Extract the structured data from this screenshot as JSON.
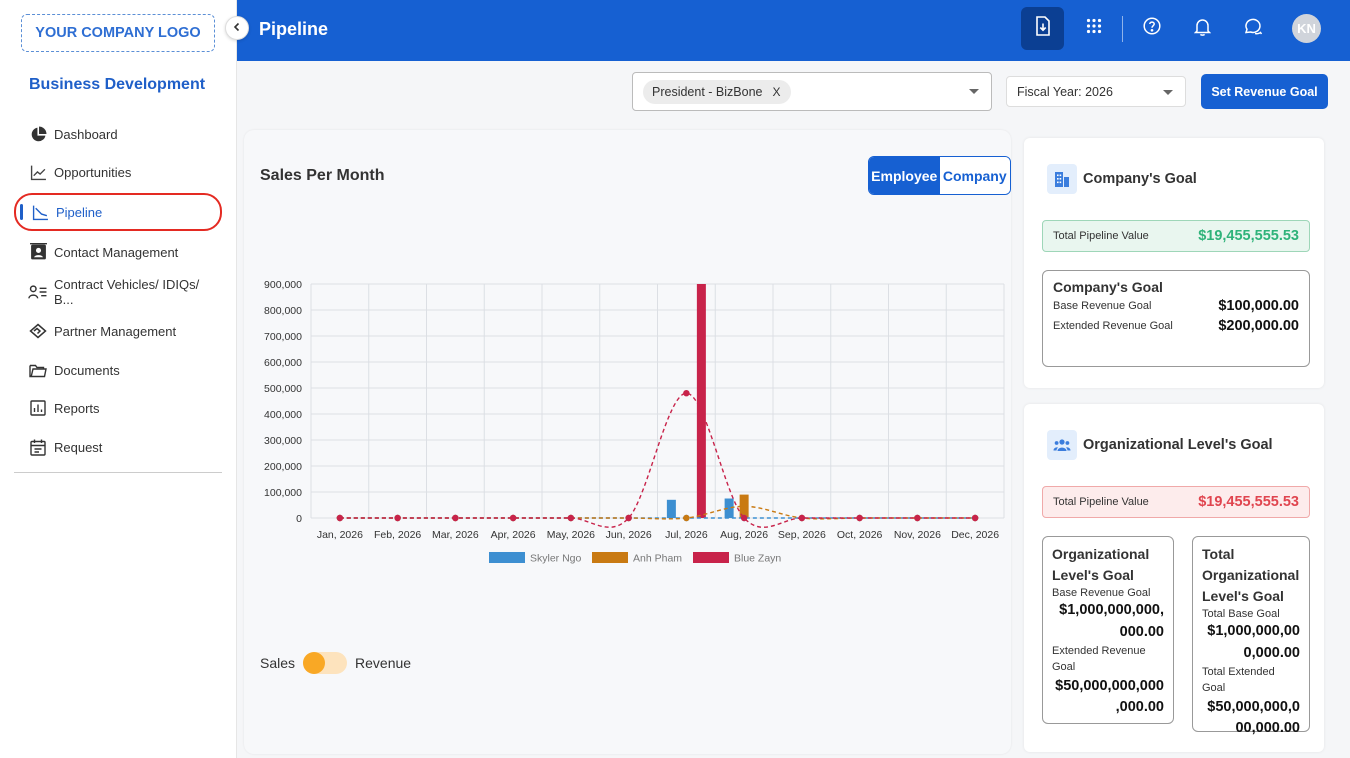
{
  "sidebar": {
    "logo": "YOUR COMPANY LOGO",
    "title": "Business Development",
    "items": [
      {
        "label": "Dashboard",
        "icon": "pie-chart-icon"
      },
      {
        "label": "Opportunities",
        "icon": "trend-line-icon"
      },
      {
        "label": "Pipeline",
        "icon": "pipeline-icon",
        "active": true
      },
      {
        "label": "Contact Management",
        "icon": "contact-card-icon"
      },
      {
        "label": "Contract Vehicles/ IDIQs/ B...",
        "icon": "user-list-icon"
      },
      {
        "label": "Partner Management",
        "icon": "handshake-icon"
      },
      {
        "label": "Documents",
        "icon": "folder-icon"
      },
      {
        "label": "Reports",
        "icon": "report-icon"
      },
      {
        "label": "Request",
        "icon": "calendar-icon"
      }
    ]
  },
  "header": {
    "title": "Pipeline",
    "avatar_initials": "KN"
  },
  "filters": {
    "role_chip": "President - BizBone",
    "chip_remove": "X",
    "fiscal_year": "Fiscal Year: 2026",
    "set_goal_button": "Set Revenue Goal"
  },
  "chart_panel": {
    "title": "Sales Per Month",
    "toggle_employee": "Employee",
    "toggle_company": "Company",
    "switch_left": "Sales",
    "switch_right": "Revenue"
  },
  "chart_data": {
    "type": "bar",
    "categories": [
      "Jan, 2026",
      "Feb, 2026",
      "Mar, 2026",
      "Apr, 2026",
      "May, 2026",
      "Jun, 2026",
      "Jul, 2026",
      "Aug, 2026",
      "Sep, 2026",
      "Oct, 2026",
      "Nov, 2026",
      "Dec, 2026"
    ],
    "y_ticks": [
      "0",
      "100,000",
      "200,000",
      "300,000",
      "400,000",
      "500,000",
      "600,000",
      "700,000",
      "800,000",
      "900,000"
    ],
    "ylim": [
      0,
      900000
    ],
    "grid": true,
    "legend_position": "bottom",
    "series": [
      {
        "name": "Skyler Ngo",
        "color": "#3d8fd1",
        "values": [
          0,
          0,
          0,
          0,
          0,
          0,
          70000,
          75000,
          0,
          0,
          0,
          0
        ],
        "line_values": [
          0,
          0,
          0,
          0,
          0,
          0,
          0,
          0,
          0,
          0,
          0,
          0
        ]
      },
      {
        "name": "Anh Pham",
        "color": "#c97a12",
        "values": [
          0,
          0,
          0,
          0,
          0,
          0,
          0,
          90000,
          0,
          0,
          0,
          0
        ],
        "line_values": [
          0,
          0,
          0,
          0,
          0,
          0,
          0,
          45000,
          0,
          0,
          0,
          0
        ]
      },
      {
        "name": "Blue Zayn",
        "color": "#c8234a",
        "values": [
          0,
          0,
          0,
          0,
          0,
          0,
          900000,
          0,
          0,
          0,
          0,
          0
        ],
        "line_values": [
          0,
          0,
          0,
          0,
          0,
          0,
          480000,
          0,
          0,
          0,
          0,
          0
        ]
      }
    ]
  },
  "company_goal": {
    "title": "Company's Goal",
    "pipeline_label": "Total Pipeline Value",
    "pipeline_value": "$19,455,555.53",
    "box_title": "Company's Goal",
    "base_label": "Base Revenue Goal",
    "base_value": "$100,000.00",
    "extended_label": "Extended Revenue Goal",
    "extended_value": "$200,000.00"
  },
  "org_goal": {
    "title": "Organizational Level's Goal",
    "pipeline_label": "Total Pipeline Value",
    "pipeline_value": "$19,455,555.53",
    "left_title_1": "Organizational",
    "left_title_2": "Level's Goal",
    "left_base_label": "Base Revenue Goal",
    "left_base_value_1": "$1,000,000,000,",
    "left_base_value_2": "000.00",
    "left_ext_label_1": "Extended Revenue",
    "left_ext_label_2": "Goal",
    "left_ext_value_1": "$50,000,000,000",
    "left_ext_value_2": ",000.00",
    "right_title_1": "Total",
    "right_title_2": "Organizational",
    "right_title_3": "Level's Goal",
    "right_base_label": "Total Base Goal",
    "right_base_value_1": "$1,000,000,00",
    "right_base_value_2": "0,000.00",
    "right_ext_label": "Total Extended Goal",
    "right_ext_value_1": "$50,000,000,0",
    "right_ext_value_2": "00,000.00"
  },
  "colors": {
    "brand_blue": "#1660d2",
    "positive_green": "#2fb37a",
    "negative_red": "#e0454f"
  }
}
